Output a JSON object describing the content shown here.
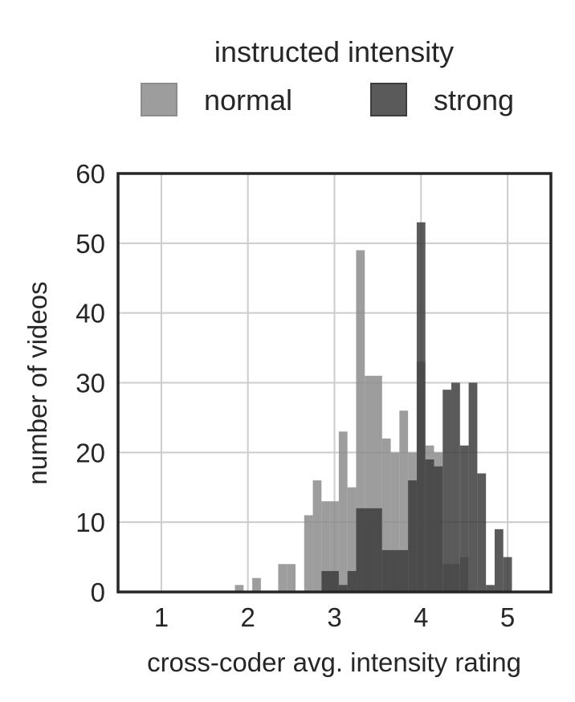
{
  "chart_data": {
    "type": "bar",
    "subtype": "overlaid histogram",
    "xlabel": "cross-coder avg. intensity rating",
    "ylabel": "number of videos",
    "xlim": [
      0.5,
      5.5
    ],
    "ylim": [
      0,
      60
    ],
    "xticks": [
      1,
      2,
      3,
      4,
      5
    ],
    "yticks": [
      0,
      10,
      20,
      30,
      40,
      50,
      60
    ],
    "grid": true,
    "bin_width": 0.1,
    "legend": {
      "title": "instructed intensity",
      "placement": "top-center",
      "entries": [
        "normal",
        "strong"
      ]
    },
    "series": [
      {
        "name": "normal",
        "color": "#8c8c8c",
        "bins": [
          {
            "x0": 1.85,
            "x1": 1.95,
            "count": 1
          },
          {
            "x0": 2.05,
            "x1": 2.15,
            "count": 2
          },
          {
            "x0": 2.35,
            "x1": 2.45,
            "count": 4
          },
          {
            "x0": 2.45,
            "x1": 2.55,
            "count": 4
          },
          {
            "x0": 2.65,
            "x1": 2.75,
            "count": 11
          },
          {
            "x0": 2.75,
            "x1": 2.85,
            "count": 16
          },
          {
            "x0": 2.85,
            "x1": 2.95,
            "count": 13
          },
          {
            "x0": 2.95,
            "x1": 3.05,
            "count": 13
          },
          {
            "x0": 3.05,
            "x1": 3.15,
            "count": 23
          },
          {
            "x0": 3.15,
            "x1": 3.25,
            "count": 15
          },
          {
            "x0": 3.25,
            "x1": 3.35,
            "count": 49
          },
          {
            "x0": 3.35,
            "x1": 3.45,
            "count": 31
          },
          {
            "x0": 3.45,
            "x1": 3.55,
            "count": 31
          },
          {
            "x0": 3.55,
            "x1": 3.65,
            "count": 22
          },
          {
            "x0": 3.65,
            "x1": 3.75,
            "count": 20
          },
          {
            "x0": 3.75,
            "x1": 3.85,
            "count": 26
          },
          {
            "x0": 3.85,
            "x1": 3.95,
            "count": 20
          },
          {
            "x0": 3.95,
            "x1": 4.05,
            "count": 33
          },
          {
            "x0": 4.05,
            "x1": 4.15,
            "count": 21
          },
          {
            "x0": 4.15,
            "x1": 4.25,
            "count": 20
          },
          {
            "x0": 4.25,
            "x1": 4.35,
            "count": 4
          },
          {
            "x0": 4.35,
            "x1": 4.45,
            "count": 4
          },
          {
            "x0": 4.45,
            "x1": 4.55,
            "count": 5
          }
        ]
      },
      {
        "name": "strong",
        "color": "#3d3d3d",
        "bins": [
          {
            "x0": 2.85,
            "x1": 3.05,
            "count": 3
          },
          {
            "x0": 3.05,
            "x1": 3.15,
            "count": 1
          },
          {
            "x0": 3.15,
            "x1": 3.25,
            "count": 3
          },
          {
            "x0": 3.25,
            "x1": 3.45,
            "count": 12
          },
          {
            "x0": 3.45,
            "x1": 3.55,
            "count": 12
          },
          {
            "x0": 3.55,
            "x1": 3.85,
            "count": 6
          },
          {
            "x0": 3.85,
            "x1": 3.95,
            "count": 16
          },
          {
            "x0": 3.95,
            "x1": 4.05,
            "count": 53
          },
          {
            "x0": 4.05,
            "x1": 4.15,
            "count": 19
          },
          {
            "x0": 4.15,
            "x1": 4.25,
            "count": 18
          },
          {
            "x0": 4.25,
            "x1": 4.35,
            "count": 29
          },
          {
            "x0": 4.35,
            "x1": 4.45,
            "count": 30
          },
          {
            "x0": 4.45,
            "x1": 4.55,
            "count": 21
          },
          {
            "x0": 4.55,
            "x1": 4.65,
            "count": 30
          },
          {
            "x0": 4.65,
            "x1": 4.75,
            "count": 17
          },
          {
            "x0": 4.75,
            "x1": 4.85,
            "count": 1
          },
          {
            "x0": 4.85,
            "x1": 4.95,
            "count": 9
          },
          {
            "x0": 4.95,
            "x1": 5.05,
            "count": 5
          }
        ]
      }
    ]
  }
}
